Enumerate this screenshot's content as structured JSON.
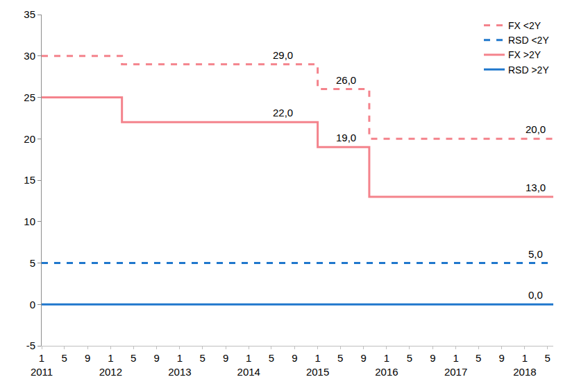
{
  "chart_data": {
    "type": "line",
    "x": [
      "2011-01-01",
      "2012-03-01",
      "2015-01-01",
      "2015-10-01",
      "2018-06-01"
    ],
    "series": [
      {
        "name": "FX <2Y",
        "color": "#f4838c",
        "line_style": "dash",
        "values": [
          30,
          29,
          26,
          20,
          20
        ]
      },
      {
        "name": "RSD <2Y",
        "color": "#1f77cc",
        "line_style": "dash",
        "values": [
          5,
          5,
          5,
          5,
          5
        ]
      },
      {
        "name": "FX >2Y",
        "color": "#f4838c",
        "line_style": "solid",
        "values": [
          25,
          22,
          19,
          13,
          13
        ]
      },
      {
        "name": "RSD >2Y",
        "color": "#1f77cc",
        "line_style": "solid",
        "values": [
          0,
          0,
          0,
          0,
          0
        ]
      }
    ],
    "annotations": [
      {
        "x": "2014-07-01",
        "y": 29,
        "text": "29,0"
      },
      {
        "x": "2015-06-01",
        "y": 26,
        "text": "26,0"
      },
      {
        "x": "2018-03-01",
        "y": 20,
        "text": "20,0"
      },
      {
        "x": "2014-07-01",
        "y": 22,
        "text": "22,0"
      },
      {
        "x": "2015-06-01",
        "y": 19,
        "text": "19,0"
      },
      {
        "x": "2018-03-01",
        "y": 13,
        "text": "13,0"
      },
      {
        "x": "2018-03-01",
        "y": 5,
        "text": "5,0"
      },
      {
        "x": "2018-03-01",
        "y": 0,
        "text": "0,0"
      }
    ],
    "xlim": [
      "2011-01-01",
      "2018-06-01"
    ],
    "xticks": [
      {
        "value": "2011-01-01",
        "label": "1\n2011"
      },
      {
        "value": "2011-05-01",
        "label": "5"
      },
      {
        "value": "2011-09-01",
        "label": "9"
      },
      {
        "value": "2012-01-01",
        "label": "1\n2012"
      },
      {
        "value": "2012-05-01",
        "label": "5"
      },
      {
        "value": "2012-09-01",
        "label": "9"
      },
      {
        "value": "2013-01-01",
        "label": "1\n2013"
      },
      {
        "value": "2013-05-01",
        "label": "5"
      },
      {
        "value": "2013-09-01",
        "label": "9"
      },
      {
        "value": "2014-01-01",
        "label": "1\n2014"
      },
      {
        "value": "2014-05-01",
        "label": "5"
      },
      {
        "value": "2014-09-01",
        "label": "9"
      },
      {
        "value": "2015-01-01",
        "label": "1\n2015"
      },
      {
        "value": "2015-05-01",
        "label": "5"
      },
      {
        "value": "2015-09-01",
        "label": "9"
      },
      {
        "value": "2016-01-01",
        "label": "1\n2016"
      },
      {
        "value": "2016-05-01",
        "label": "5"
      },
      {
        "value": "2016-09-01",
        "label": "9"
      },
      {
        "value": "2017-01-01",
        "label": "1\n2017"
      },
      {
        "value": "2017-05-01",
        "label": "5"
      },
      {
        "value": "2017-09-01",
        "label": "9"
      },
      {
        "value": "2018-01-01",
        "label": "1\n2018"
      },
      {
        "value": "2018-05-01",
        "label": "5"
      }
    ],
    "ylim": [
      -5,
      35
    ],
    "yticks": [
      -5,
      0,
      5,
      10,
      15,
      20,
      25,
      30,
      35
    ],
    "grid": false,
    "legend": "upper right"
  }
}
